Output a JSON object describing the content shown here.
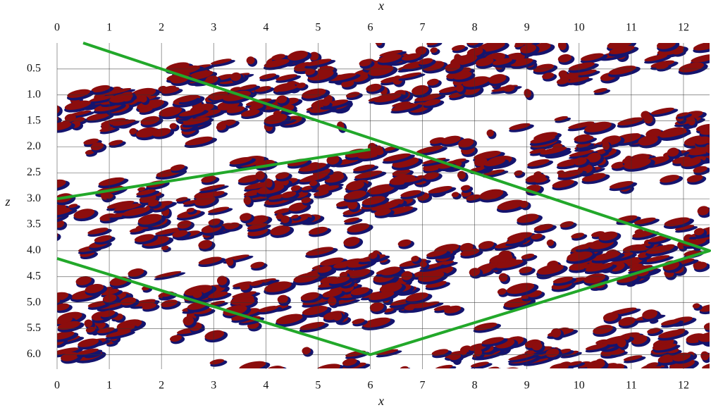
{
  "chart_data": {
    "type": "line",
    "xlabel": "x",
    "ylabel": "z",
    "xlim": [
      0,
      12.5
    ],
    "ylim": [
      0,
      6.28
    ],
    "y_inverted": true,
    "xticks": [
      0,
      1,
      2,
      3,
      4,
      5,
      6,
      7,
      8,
      9,
      10,
      11,
      12
    ],
    "yticks": [
      0.5,
      {
        "value": 1,
        "label": "1.0"
      },
      1.5,
      {
        "value": 2,
        "label": "2.0"
      },
      2.5,
      {
        "value": 3,
        "label": "3.0"
      },
      3.5,
      {
        "value": 4,
        "label": "4.0"
      },
      4.5,
      {
        "value": 5,
        "label": "5.0"
      },
      5.5,
      {
        "value": 6,
        "label": "6.0"
      }
    ],
    "grid": true,
    "series": [
      {
        "color": "#22a82a",
        "x": [
          0.5,
          12.5,
          6,
          0
        ],
        "values": [
          0,
          4.0,
          6.0,
          4.15
        ]
      },
      {
        "color": "#22a82a",
        "x": [
          0,
          6
        ],
        "values": [
          3.0,
          2.05
        ]
      }
    ]
  }
}
